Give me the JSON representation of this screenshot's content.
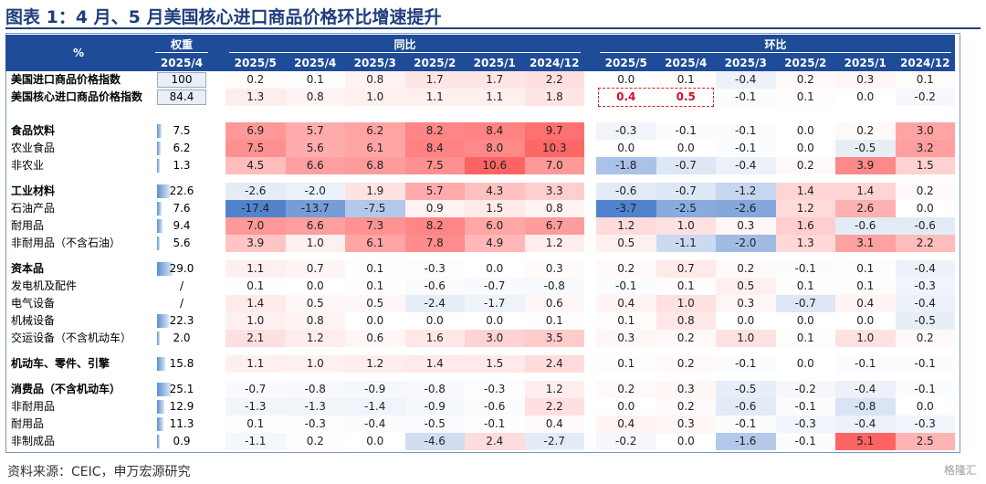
{
  "title": "图表 1：4 月、5 月美国核心进口商品价格环比增速提升",
  "source": "资料来源：CEIC，申万宏源研究",
  "watermark": "格隆汇",
  "header": {
    "unit": "%",
    "weight_top": "权重",
    "weight_sub": "2025/4",
    "yoy_group": "同比",
    "mom_group": "环比",
    "yoy_cols": [
      "2025/5",
      "2025/4",
      "2025/3",
      "2025/2",
      "2025/1",
      "2024/12"
    ],
    "mom_cols": [
      "2025/5",
      "2025/4",
      "2025/3",
      "2025/2",
      "2025/1",
      "2024/12"
    ]
  },
  "rows": [
    {
      "label": "美国进口商品价格指数",
      "bold": true,
      "weight": "100",
      "weight_frac": 1.0,
      "weight_box": true,
      "yoy": [
        "0.2",
        "0.1",
        "0.8",
        "1.7",
        "1.7",
        "2.2"
      ],
      "mom": [
        "0.0",
        "0.1",
        "-0.4",
        "0.2",
        "0.3",
        "0.1"
      ]
    },
    {
      "label": "美国核心进口商品价格指数",
      "bold": true,
      "weight": "84.4",
      "weight_frac": 0.844,
      "weight_box": true,
      "yoy": [
        "1.3",
        "0.8",
        "1.0",
        "1.1",
        "1.1",
        "1.8"
      ],
      "mom": [
        "0.4",
        "0.5",
        "-0.1",
        "0.1",
        "0.0",
        "-0.2"
      ]
    },
    {
      "label": "食品饮料",
      "bold": true,
      "weight": "7.5",
      "weight_frac": 0.075,
      "yoy": [
        "6.9",
        "5.7",
        "6.2",
        "8.2",
        "8.4",
        "9.7"
      ],
      "mom": [
        "-0.3",
        "-0.1",
        "-0.1",
        "0.0",
        "0.2",
        "3.0"
      ]
    },
    {
      "label": "农业食品",
      "indent": true,
      "weight": "6.2",
      "weight_frac": 0.062,
      "yoy": [
        "7.5",
        "5.6",
        "6.1",
        "8.4",
        "8.0",
        "10.3"
      ],
      "mom": [
        "0.0",
        "0.0",
        "-0.1",
        "0.0",
        "-0.5",
        "3.2"
      ]
    },
    {
      "label": "非农业",
      "indent": true,
      "weight": "1.3",
      "weight_frac": 0.013,
      "yoy": [
        "4.5",
        "6.6",
        "6.8",
        "7.5",
        "10.6",
        "7.0"
      ],
      "mom": [
        "-1.8",
        "-0.7",
        "-0.4",
        "0.2",
        "3.9",
        "1.5"
      ]
    },
    {
      "label": "工业材料",
      "bold": true,
      "weight": "22.6",
      "weight_frac": 0.226,
      "yoy": [
        "-2.6",
        "-2.0",
        "1.9",
        "5.7",
        "4.3",
        "3.3"
      ],
      "mom": [
        "-0.6",
        "-0.7",
        "-1.2",
        "1.4",
        "1.4",
        "0.2"
      ]
    },
    {
      "label": "石油产品",
      "indent": true,
      "weight": "7.6",
      "weight_frac": 0.076,
      "yoy": [
        "-17.4",
        "-13.7",
        "-7.5",
        "0.9",
        "1.5",
        "0.8"
      ],
      "mom": [
        "-3.7",
        "-2.5",
        "-2.6",
        "1.2",
        "2.6",
        "0.0"
      ]
    },
    {
      "label": "耐用品",
      "indent": true,
      "weight": "9.4",
      "weight_frac": 0.094,
      "yoy": [
        "7.0",
        "6.6",
        "7.3",
        "8.2",
        "6.0",
        "6.7"
      ],
      "mom": [
        "1.2",
        "1.0",
        "0.3",
        "1.6",
        "-0.6",
        "-0.6"
      ]
    },
    {
      "label": "非耐用品（不含石油）",
      "indent": true,
      "weight": "5.6",
      "weight_frac": 0.056,
      "yoy": [
        "3.9",
        "1.0",
        "6.1",
        "7.8",
        "4.9",
        "1.2"
      ],
      "mom": [
        "0.5",
        "-1.1",
        "-2.0",
        "1.3",
        "3.1",
        "2.2"
      ]
    },
    {
      "label": "资本品",
      "bold": true,
      "weight": "29.0",
      "weight_frac": 0.29,
      "yoy": [
        "1.1",
        "0.7",
        "0.1",
        "-0.3",
        "0.0",
        "0.3"
      ],
      "mom": [
        "0.2",
        "0.7",
        "0.2",
        "-0.1",
        "0.1",
        "-0.4"
      ]
    },
    {
      "label": "发电机及配件",
      "indent": true,
      "weight": "/",
      "weight_frac": 0,
      "yoy": [
        "0.1",
        "0.0",
        "0.1",
        "-0.6",
        "-0.7",
        "-0.8"
      ],
      "mom": [
        "-0.1",
        "0.1",
        "0.5",
        "0.1",
        "0.1",
        "-0.3"
      ]
    },
    {
      "label": "电气设备",
      "indent": true,
      "weight": "/",
      "weight_frac": 0,
      "yoy": [
        "1.4",
        "0.5",
        "0.5",
        "-2.4",
        "-1.7",
        "0.6"
      ],
      "mom": [
        "0.4",
        "1.0",
        "0.3",
        "-0.7",
        "0.4",
        "-0.4"
      ]
    },
    {
      "label": "机械设备",
      "indent": true,
      "weight": "22.3",
      "weight_frac": 0.223,
      "yoy": [
        "1.0",
        "0.8",
        "0.0",
        "0.0",
        "0.0",
        "0.1"
      ],
      "mom": [
        "0.1",
        "0.8",
        "0.0",
        "0.0",
        "0.0",
        "-0.5"
      ]
    },
    {
      "label": "交运设备（不含机动车）",
      "indent": true,
      "weight": "2.0",
      "weight_frac": 0.02,
      "yoy": [
        "2.1",
        "1.2",
        "0.6",
        "1.6",
        "3.0",
        "3.5"
      ],
      "mom": [
        "0.3",
        "0.2",
        "1.0",
        "0.1",
        "1.0",
        "0.2"
      ]
    },
    {
      "label": "机动车、零件、引擎",
      "bold": true,
      "weight": "15.8",
      "weight_frac": 0.158,
      "yoy": [
        "1.1",
        "1.0",
        "1.2",
        "1.4",
        "1.5",
        "2.4"
      ],
      "mom": [
        "0.1",
        "0.2",
        "-0.1",
        "0.0",
        "-0.1",
        "-0.1"
      ]
    },
    {
      "label": "消费品（不含机动车）",
      "bold": true,
      "weight": "25.1",
      "weight_frac": 0.251,
      "yoy": [
        "-0.7",
        "-0.8",
        "-0.9",
        "-0.8",
        "-0.3",
        "1.2"
      ],
      "mom": [
        "0.2",
        "0.3",
        "-0.5",
        "-0.2",
        "-0.4",
        "-0.1"
      ]
    },
    {
      "label": "非耐用品",
      "indent": true,
      "weight": "12.9",
      "weight_frac": 0.129,
      "yoy": [
        "-1.3",
        "-1.3",
        "-1.4",
        "-0.9",
        "-0.6",
        "2.2"
      ],
      "mom": [
        "0.0",
        "0.2",
        "-0.6",
        "-0.1",
        "-0.8",
        "0.0"
      ]
    },
    {
      "label": "耐用品",
      "indent": true,
      "weight": "11.3",
      "weight_frac": 0.113,
      "yoy": [
        "0.1",
        "-0.3",
        "-0.4",
        "-0.5",
        "-0.1",
        "0.4"
      ],
      "mom": [
        "0.4",
        "0.3",
        "-0.1",
        "-0.3",
        "-0.4",
        "-0.3"
      ]
    },
    {
      "label": "非制成品",
      "indent": true,
      "weight": "0.9",
      "weight_frac": 0.009,
      "yoy": [
        "-1.1",
        "0.2",
        "0.0",
        "-4.6",
        "2.4",
        "-2.7"
      ],
      "mom": [
        "-0.2",
        "0.0",
        "-1.6",
        "-0.1",
        "5.1",
        "2.5"
      ]
    }
  ],
  "highlight_note_cells": {
    "row": 1,
    "mom_cols": [
      0,
      1
    ]
  }
}
